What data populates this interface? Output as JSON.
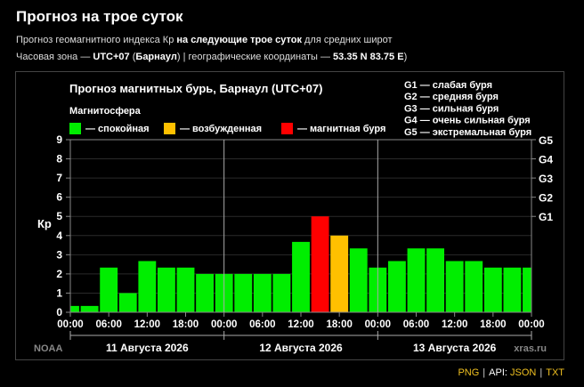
{
  "header": {
    "title": "Прогноз на трое суток",
    "line1": {
      "pre": "Прогноз геомагнитного индекса Кр ",
      "bold": "на следующие трое суток",
      "post": " для средних широт"
    },
    "line2": {
      "pre": "Часовая зона — ",
      "tz": "UTC+07",
      "open": " (",
      "city": "Барнаул",
      "mid": ") | географические координаты — ",
      "coords": "53.35 N 83.75 E",
      "close": ")"
    }
  },
  "chart_data": {
    "type": "bar",
    "title": "Прогноз магнитных бурь, Барнаул (UTC+07)",
    "legend_title": "Магнитосфера",
    "legend": [
      {
        "label": "— спокойная",
        "color": "#00ee00"
      },
      {
        "label": "— возбужденная",
        "color": "#ffc000"
      },
      {
        "label": "— магнитная буря",
        "color": "#ff0000"
      }
    ],
    "storm_scale": [
      "G1 — слабая буря",
      "G2 — средняя буря",
      "G3 — сильная буря",
      "G4 — очень сильная буря",
      "G5 — экстремальная буря"
    ],
    "ylabel": "Кр",
    "ylim": [
      0,
      9
    ],
    "yticks": [
      "0",
      "1",
      "2",
      "3",
      "4",
      "5",
      "6",
      "7",
      "8",
      "9"
    ],
    "g_levels": [
      {
        "label": "G1",
        "value": 5
      },
      {
        "label": "G2",
        "value": 6
      },
      {
        "label": "G3",
        "value": 7
      },
      {
        "label": "G4",
        "value": 8
      },
      {
        "label": "G5",
        "value": 9
      }
    ],
    "x_ticks": [
      "00:00",
      "06:00",
      "12:00",
      "18:00",
      "00:00",
      "06:00",
      "12:00",
      "18:00",
      "00:00",
      "06:00",
      "12:00",
      "18:00",
      "00:00"
    ],
    "days": [
      "11 Августа 2026",
      "12 Августа 2026",
      "13 Августа 2026"
    ],
    "values": [
      0.33,
      0.33,
      2.33,
      1.0,
      2.67,
      2.33,
      2.33,
      2.0,
      2.0,
      2.0,
      2.0,
      2.0,
      3.67,
      5.0,
      4.0,
      3.33,
      2.33,
      2.67,
      3.33,
      3.33,
      2.67,
      2.67,
      2.33,
      2.33,
      2.33
    ],
    "colors": [
      "#00ee00",
      "#00ee00",
      "#00ee00",
      "#00ee00",
      "#00ee00",
      "#00ee00",
      "#00ee00",
      "#00ee00",
      "#00ee00",
      "#00ee00",
      "#00ee00",
      "#00ee00",
      "#00ee00",
      "#ff0000",
      "#ffc000",
      "#00ee00",
      "#00ee00",
      "#00ee00",
      "#00ee00",
      "#00ee00",
      "#00ee00",
      "#00ee00",
      "#00ee00",
      "#00ee00",
      "#00ee00"
    ],
    "source_left": "NOAA",
    "source_right": "xras.ru",
    "grid": true
  },
  "footer": {
    "png": "PNG",
    "api_label": "API:",
    "json": "JSON",
    "txt": "TXT",
    "sep": "|"
  }
}
